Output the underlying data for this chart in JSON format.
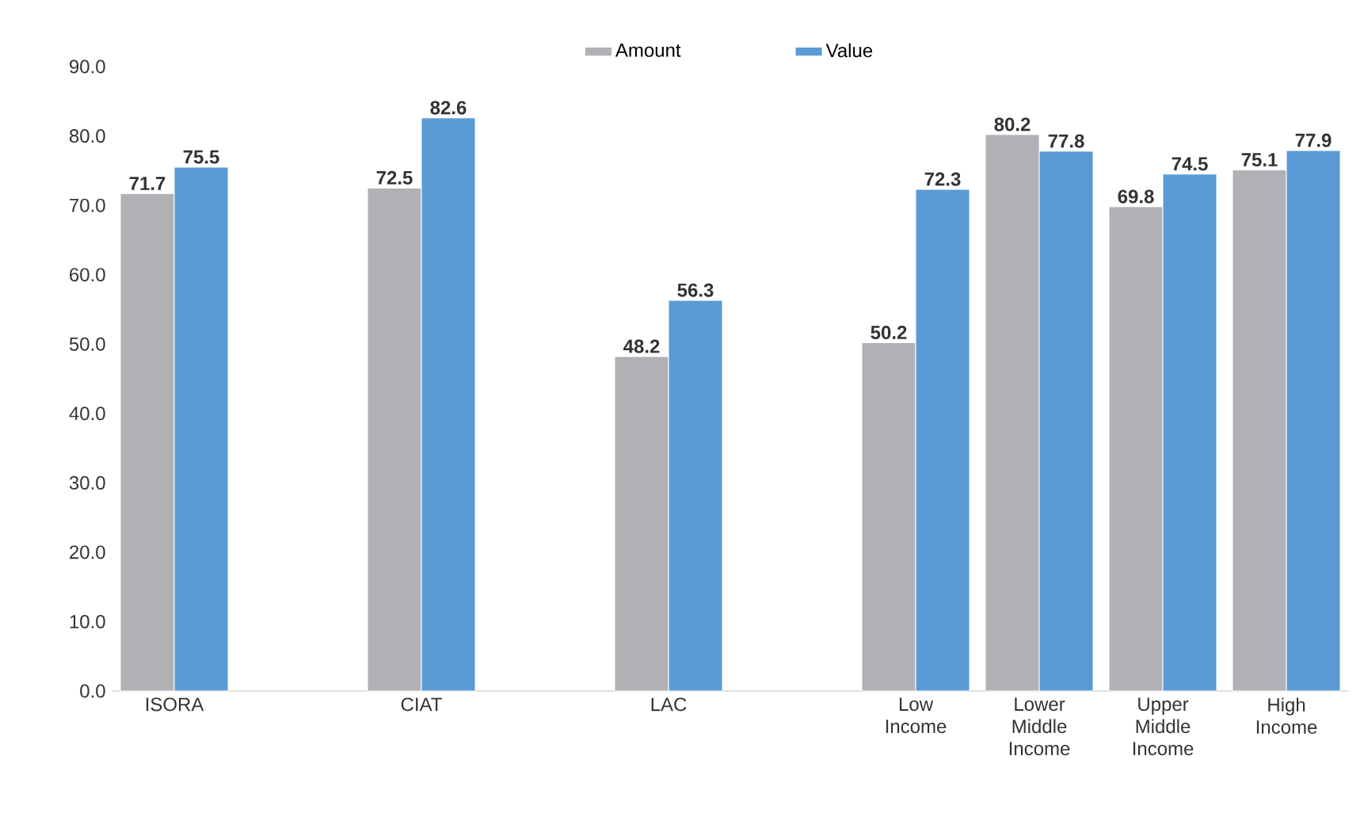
{
  "chart_data": {
    "type": "bar",
    "categories": [
      "ISORA",
      null,
      "CIAT",
      null,
      "LAC",
      null,
      "Low Income",
      "Lower Middle Income",
      "Upper Middle Income",
      "High Income"
    ],
    "series": [
      {
        "name": "Amount",
        "color": "#b1b1b5",
        "values": [
          71.7,
          null,
          72.5,
          null,
          48.2,
          null,
          50.2,
          80.2,
          69.8,
          75.1
        ]
      },
      {
        "name": "Value",
        "color": "#5b9bd5",
        "values": [
          75.5,
          null,
          82.6,
          null,
          56.3,
          null,
          72.3,
          77.8,
          74.5,
          77.9
        ]
      }
    ],
    "ylim": [
      0,
      90
    ],
    "yticks": [
      {
        "value": 0,
        "label": "0.0"
      },
      {
        "value": 10,
        "label": "10.0"
      },
      {
        "value": 20,
        "label": "20.0"
      },
      {
        "value": 30,
        "label": "30.0"
      },
      {
        "value": 40,
        "label": "40.0"
      },
      {
        "value": 50,
        "label": "50.0"
      },
      {
        "value": 60,
        "label": "60.0"
      },
      {
        "value": 70,
        "label": "70.0"
      },
      {
        "value": 80,
        "label": "80.0"
      },
      {
        "value": 90,
        "label": "90.0"
      }
    ],
    "data_labels": true,
    "legend": "top"
  }
}
